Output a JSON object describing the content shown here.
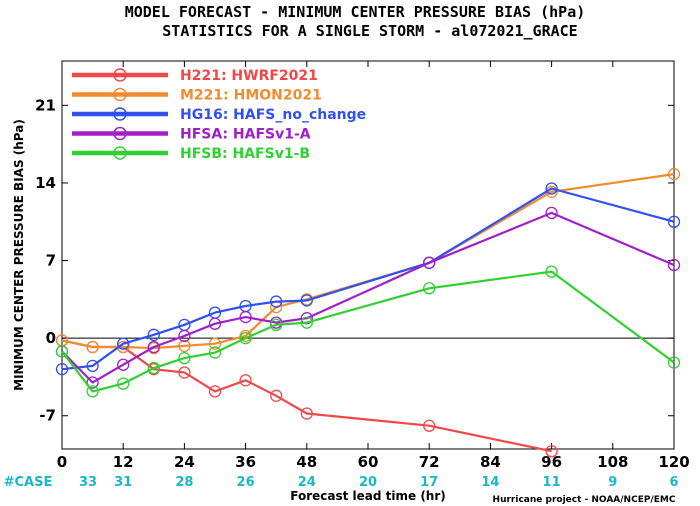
{
  "chart_data": {
    "type": "line",
    "title": "MODEL FORECAST - MINIMUM CENTER PRESSURE BIAS (hPa)",
    "subtitle": "STATISTICS FOR A SINGLE STORM - al072021_GRACE",
    "xlabel": "Forecast lead time (hr)",
    "ylabel": "MINIMUM CENTER PRESSURE BIAS (hPa)",
    "xlim": [
      0,
      120
    ],
    "ylim": [
      -10,
      25
    ],
    "x_ticks": [
      0,
      12,
      24,
      36,
      48,
      60,
      72,
      84,
      96,
      108,
      120
    ],
    "y_ticks": [
      -7,
      0,
      7,
      14,
      21
    ],
    "zero_line": true,
    "legend_position": "top-left",
    "case_label": "#CASE",
    "case_counts": [
      33,
      31,
      28,
      26,
      24,
      20,
      17,
      14,
      11,
      9,
      6
    ],
    "credit": "Hurricane project - NOAA/NCEP/EMC",
    "series": [
      {
        "name": "H221: HWRF2021",
        "color": "#f04848",
        "x": [
          0,
          6,
          12,
          18,
          24,
          30,
          36,
          42,
          48,
          72,
          96
        ],
        "y": [
          -0.2,
          -0.8,
          -0.8,
          -2.8,
          -3.1,
          -4.8,
          -3.8,
          -5.2,
          -6.8,
          -7.9,
          -10.2
        ]
      },
      {
        "name": "M221: HMON2021",
        "color": "#f08c30",
        "x": [
          0,
          6,
          12,
          18,
          24,
          30,
          36,
          42,
          48,
          72,
          96,
          120
        ],
        "y": [
          -0.2,
          -0.8,
          -0.8,
          -0.9,
          -0.7,
          -0.5,
          0.2,
          2.8,
          3.5,
          6.8,
          13.2,
          14.8
        ]
      },
      {
        "name": "HG16: HAFS_no_change",
        "color": "#3050f0",
        "x": [
          0,
          6,
          12,
          18,
          24,
          30,
          36,
          42,
          48,
          72,
          96,
          120
        ],
        "y": [
          -2.8,
          -2.5,
          -0.5,
          0.3,
          1.2,
          2.3,
          2.9,
          3.3,
          3.4,
          6.8,
          13.5,
          10.5
        ]
      },
      {
        "name": "HFSA: HAFSv1-A",
        "color": "#a020c8",
        "x": [
          0,
          6,
          12,
          18,
          24,
          30,
          36,
          42,
          48,
          72,
          96,
          120
        ],
        "y": [
          -1.2,
          -4.0,
          -2.4,
          -0.8,
          0.2,
          1.3,
          1.9,
          1.4,
          1.8,
          6.8,
          11.3,
          6.6
        ]
      },
      {
        "name": "HFSB: HAFSv1-B",
        "color": "#30d030",
        "x": [
          0,
          6,
          12,
          18,
          24,
          30,
          36,
          42,
          48,
          72,
          96,
          120
        ],
        "y": [
          -1.2,
          -4.8,
          -4.1,
          -2.7,
          -1.8,
          -1.3,
          0.0,
          1.2,
          1.4,
          4.5,
          6.0,
          -2.2
        ]
      }
    ]
  }
}
